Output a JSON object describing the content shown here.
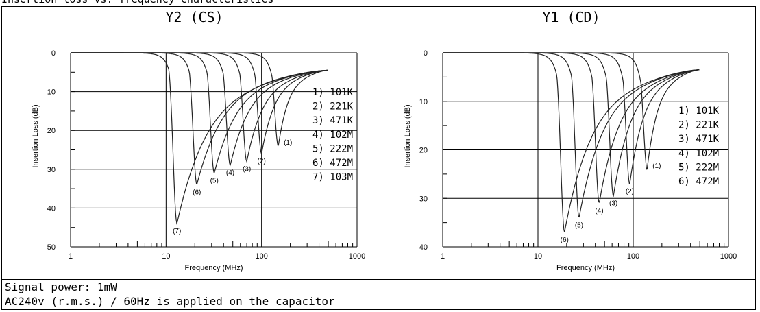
{
  "top_caption": "Insertion loss vs. frequency characteristics",
  "notes": {
    "line1": "Signal power: 1mW",
    "line2": "AC240v (r.m.s.) / 60Hz is applied on the capacitor"
  },
  "chart_data": [
    {
      "type": "line",
      "title": "Y2 (CS)",
      "xlabel": "Frequency (MHz)",
      "ylabel": "Insertion Loss (dB)",
      "xscale": "log",
      "xlim": [
        1,
        1000
      ],
      "ylim": [
        0,
        50
      ],
      "y_inverted": true,
      "x_ticks": [
        "1",
        "10",
        "100",
        "1000"
      ],
      "y_ticks": [
        "0",
        "10",
        "20",
        "30",
        "40",
        "50"
      ],
      "legend": [
        "1) 101K",
        "2) 221K",
        "3) 471K",
        "4) 102M",
        "5) 222M",
        "6) 472M",
        "7) 103M"
      ],
      "series": [
        {
          "name": "(1)",
          "resonance_mhz": 150,
          "min_loss_db": 24
        },
        {
          "name": "(2)",
          "resonance_mhz": 100,
          "min_loss_db": 26
        },
        {
          "name": "(3)",
          "resonance_mhz": 70,
          "min_loss_db": 28
        },
        {
          "name": "(4)",
          "resonance_mhz": 47,
          "min_loss_db": 29
        },
        {
          "name": "(5)",
          "resonance_mhz": 32,
          "min_loss_db": 31
        },
        {
          "name": "(6)",
          "resonance_mhz": 21,
          "min_loss_db": 34
        },
        {
          "name": "(7)",
          "resonance_mhz": 13,
          "min_loss_db": 44
        }
      ],
      "end_point": {
        "x": 500,
        "y": 4.5
      }
    },
    {
      "type": "line",
      "title": "Y1 (CD)",
      "xlabel": "Frequency (MHz)",
      "ylabel": "Insertion Loss (dB)",
      "xscale": "log",
      "xlim": [
        1,
        1000
      ],
      "ylim": [
        0,
        40
      ],
      "y_inverted": true,
      "x_ticks": [
        "1",
        "10",
        "100",
        "1000"
      ],
      "y_ticks": [
        "0",
        "10",
        "20",
        "30",
        "40"
      ],
      "legend": [
        "1) 101K",
        "2) 221K",
        "3) 471K",
        "4) 102M",
        "5) 222M",
        "6) 472M"
      ],
      "series": [
        {
          "name": "(1)",
          "resonance_mhz": 140,
          "min_loss_db": 24
        },
        {
          "name": "(2)",
          "resonance_mhz": 92,
          "min_loss_db": 27
        },
        {
          "name": "(3)",
          "resonance_mhz": 62,
          "min_loss_db": 29.5
        },
        {
          "name": "(4)",
          "resonance_mhz": 44,
          "min_loss_db": 31
        },
        {
          "name": "(5)",
          "resonance_mhz": 27,
          "min_loss_db": 34
        },
        {
          "name": "(6)",
          "resonance_mhz": 19,
          "min_loss_db": 37
        }
      ],
      "end_point": {
        "x": 500,
        "y": 3.5
      }
    }
  ]
}
